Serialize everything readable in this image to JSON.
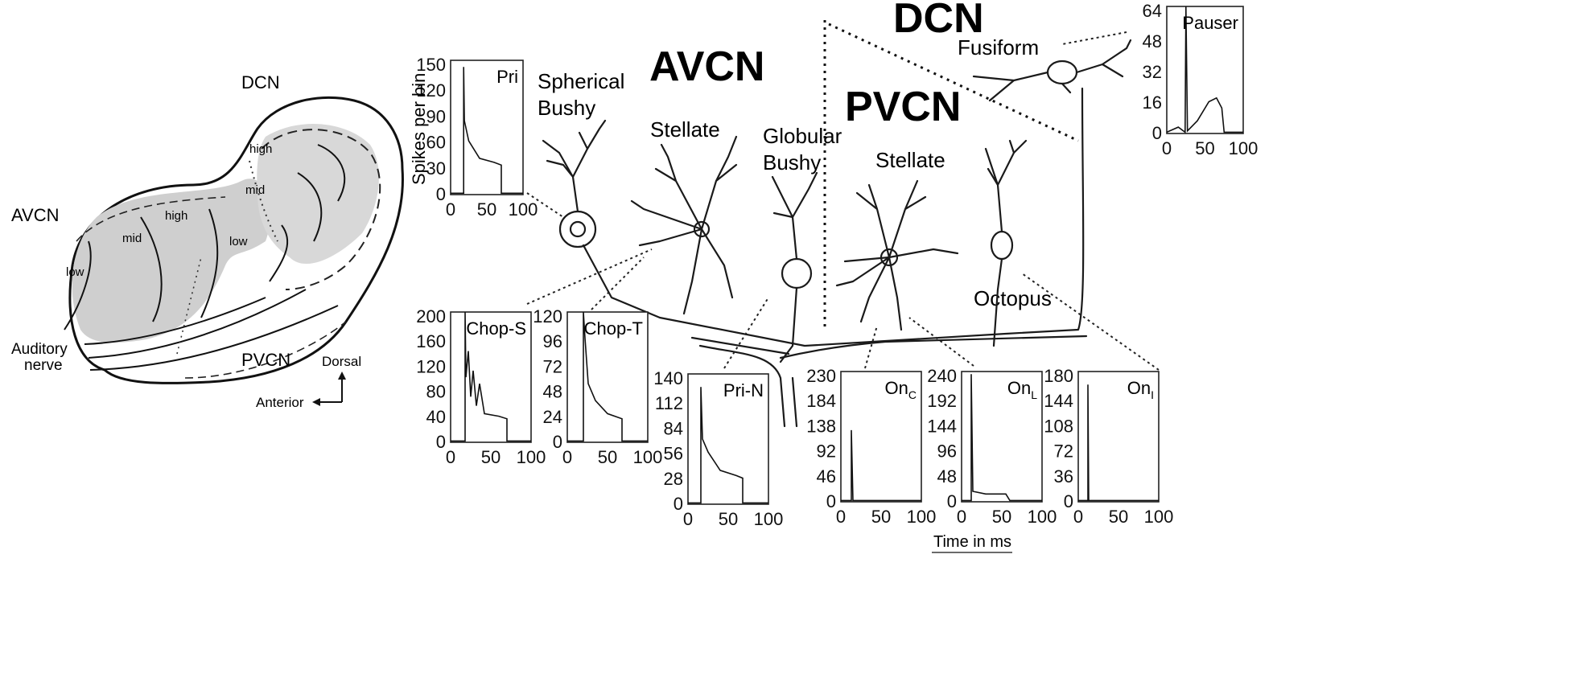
{
  "left_schematic": {
    "region_labels": {
      "dcn": "DCN",
      "avcn": "AVCN",
      "pvcn": "PVCN"
    },
    "nerve_label_line1": "Auditory",
    "nerve_label_line2": "nerve",
    "tonotopy": {
      "high": "high",
      "mid": "mid",
      "low": "low"
    },
    "axes": {
      "dorsal": "Dorsal",
      "anterior": "Anterior"
    }
  },
  "nucleus_titles": {
    "avcn": "AVCN",
    "pvcn": "PVCN",
    "dcn": "DCN"
  },
  "cell_labels": {
    "spherical_bushy_1": "Spherical",
    "spherical_bushy_2": "Bushy",
    "stellate_avcn": "Stellate",
    "globular_bushy_1": "Globular",
    "globular_bushy_2": "Bushy",
    "stellate_pvcn": "Stellate",
    "octopus": "Octopus",
    "fusiform": "Fusiform"
  },
  "y_axis_label": "Spikes per bin",
  "x_axis_label": "Time in ms",
  "histograms": [
    {
      "id": "pri",
      "label": "Pri",
      "yticks": [
        "0",
        "30",
        "60",
        "90",
        "120",
        "150"
      ],
      "xticks": [
        "0",
        "50",
        "100"
      ]
    },
    {
      "id": "chop-s",
      "label": "Chop-S",
      "yticks": [
        "0",
        "40",
        "80",
        "120",
        "160",
        "200"
      ],
      "xticks": [
        "0",
        "50",
        "100"
      ]
    },
    {
      "id": "chop-t",
      "label": "Chop-T",
      "yticks": [
        "0",
        "24",
        "48",
        "72",
        "96",
        "120"
      ],
      "xticks": [
        "0",
        "50",
        "100"
      ]
    },
    {
      "id": "pri-n",
      "label": "Pri-N",
      "yticks": [
        "0",
        "28",
        "56",
        "84",
        "112",
        "140"
      ],
      "xticks": [
        "0",
        "50",
        "100"
      ]
    },
    {
      "id": "on-c",
      "label": "On",
      "sub": "C",
      "yticks": [
        "0",
        "46",
        "92",
        "138",
        "184",
        "230"
      ],
      "xticks": [
        "0",
        "50",
        "100"
      ]
    },
    {
      "id": "on-l",
      "label": "On",
      "sub": "L",
      "yticks": [
        "0",
        "48",
        "96",
        "144",
        "192",
        "240"
      ],
      "xticks": [
        "0",
        "50",
        "100"
      ]
    },
    {
      "id": "on-i",
      "label": "On",
      "sub": "I",
      "yticks": [
        "0",
        "36",
        "72",
        "108",
        "144",
        "180"
      ],
      "xticks": [
        "0",
        "50",
        "100"
      ]
    },
    {
      "id": "pauser",
      "label": "Pauser",
      "yticks": [
        "0",
        "16",
        "32",
        "48",
        "64"
      ],
      "xticks": [
        "0",
        "50",
        "100"
      ]
    }
  ]
}
